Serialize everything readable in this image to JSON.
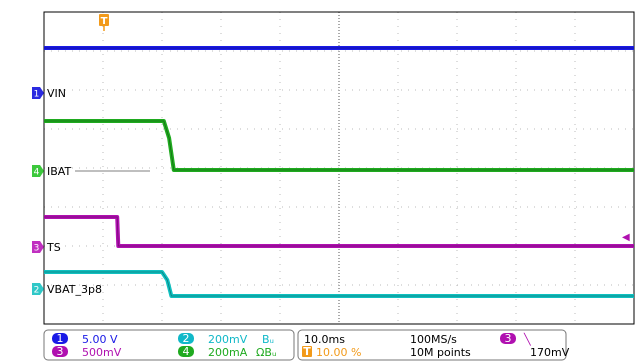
{
  "chart_data": {
    "type": "line",
    "trigger_marker": "T",
    "right_marker": "◀",
    "series": [
      {
        "channel": "1",
        "name": "VIN",
        "color": "#1a1ae6",
        "label_color": "#2a2ae0",
        "points": [
          [
            0,
            48
          ],
          [
            100,
            48
          ]
        ]
      },
      {
        "channel": "4",
        "name": "IBAT",
        "color": "#1faa1f",
        "label_color": "#3cc83c",
        "points": [
          [
            0,
            121
          ],
          [
            20.3,
            121
          ],
          [
            21.2,
            138
          ],
          [
            22.0,
            170
          ],
          [
            100,
            170
          ]
        ]
      },
      {
        "channel": "3",
        "name": "TS",
        "color": "#b010b0",
        "label_color": "#c030c0",
        "points": [
          [
            0,
            217
          ],
          [
            12.4,
            217
          ],
          [
            12.6,
            246
          ],
          [
            100,
            246
          ]
        ]
      },
      {
        "channel": "2",
        "name": "VBAT_3p8",
        "color": "#10c0c0",
        "label_color": "#30c8c8",
        "points": [
          [
            0,
            272
          ],
          [
            20.0,
            272
          ],
          [
            20.9,
            280
          ],
          [
            21.6,
            296
          ],
          [
            100,
            296
          ]
        ]
      }
    ]
  },
  "readout": {
    "ch1": {
      "num": "1",
      "value": "5.00 V",
      "color": "#1a1ae6"
    },
    "ch3": {
      "num": "3",
      "value": "500mV",
      "color": "#b010b0"
    },
    "ch2": {
      "num": "2",
      "value": "200mV",
      "suffix": "Bᵤ",
      "color": "#10b8c8"
    },
    "ch4": {
      "num": "4",
      "value": "200mA",
      "suffix": "ΩBᵤ",
      "color": "#1faa1f"
    },
    "timebase": "10.0ms",
    "trigger_pos": "10.00 %",
    "sample_rate": "100MS/s",
    "record_length": "10M points",
    "trig_channel": "3",
    "trig_slope": "╲",
    "trig_level": "170mV"
  }
}
